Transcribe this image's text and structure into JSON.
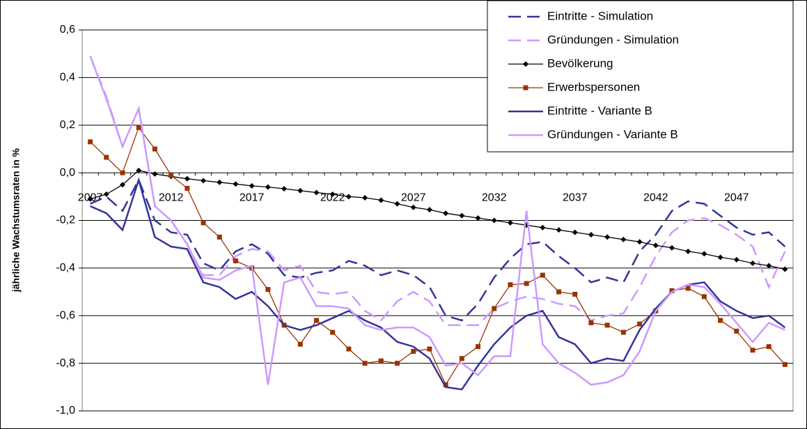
{
  "chart_data": {
    "type": "line",
    "y_axis_label": "jährliche Wachstumsraten in %",
    "categories": [
      "2007",
      null,
      null,
      null,
      null,
      "2012",
      null,
      null,
      null,
      null,
      "2017",
      null,
      null,
      null,
      null,
      "2022",
      null,
      null,
      null,
      null,
      "2027",
      null,
      null,
      null,
      null,
      "2032",
      null,
      null,
      null,
      null,
      "2037",
      null,
      null,
      null,
      null,
      "2042",
      null,
      null,
      null,
      null,
      "2047",
      null,
      null,
      null
    ],
    "ylim": [
      -1.0,
      0.6
    ],
    "yticks": [
      {
        "value": -1.0,
        "label": "-1,0"
      },
      {
        "value": -0.8,
        "label": "-0,8"
      },
      {
        "value": -0.6,
        "label": "-0,6"
      },
      {
        "value": -0.4,
        "label": "-0,4"
      },
      {
        "value": -0.2,
        "label": "-0,2"
      },
      {
        "value": 0.0,
        "label": "0,0"
      },
      {
        "value": 0.2,
        "label": "0,2"
      },
      {
        "value": 0.4,
        "label": "0,4"
      },
      {
        "value": 0.6,
        "label": "0,6"
      }
    ],
    "grid": true,
    "legend": "top-right",
    "series": [
      {
        "name": "Eintritte - Simulation",
        "color": "#333399",
        "dash": true,
        "marker": "none",
        "values": [
          -0.13,
          -0.1,
          -0.16,
          -0.03,
          -0.2,
          -0.25,
          -0.26,
          -0.38,
          -0.41,
          -0.33,
          -0.3,
          -0.34,
          -0.43,
          -0.44,
          -0.42,
          -0.41,
          -0.37,
          -0.39,
          -0.43,
          -0.41,
          -0.43,
          -0.48,
          -0.6,
          -0.62,
          -0.55,
          -0.44,
          -0.36,
          -0.3,
          -0.29,
          -0.35,
          -0.4,
          -0.46,
          -0.44,
          -0.46,
          -0.33,
          -0.26,
          -0.16,
          -0.12,
          -0.13,
          -0.18,
          -0.23,
          -0.26,
          -0.25,
          -0.31
        ]
      },
      {
        "name": "Gründungen - Simulation",
        "color": "#cc99ff",
        "dash": true,
        "marker": "none",
        "values": [
          0.49,
          0.32,
          0.11,
          0.27,
          -0.14,
          -0.2,
          -0.3,
          -0.43,
          -0.43,
          -0.35,
          -0.32,
          -0.33,
          -0.41,
          -0.39,
          -0.5,
          -0.51,
          -0.5,
          -0.58,
          -0.62,
          -0.54,
          -0.5,
          -0.54,
          -0.64,
          -0.64,
          -0.64,
          -0.57,
          -0.54,
          -0.52,
          -0.53,
          -0.55,
          -0.56,
          -0.62,
          -0.6,
          -0.59,
          -0.48,
          -0.35,
          -0.25,
          -0.2,
          -0.19,
          -0.22,
          -0.26,
          -0.31,
          -0.48,
          -0.33
        ]
      },
      {
        "name": "Bevölkerung",
        "color": "#000000",
        "dash": false,
        "marker": "diamond",
        "values": [
          -0.11,
          -0.09,
          -0.05,
          0.01,
          -0.005,
          -0.015,
          -0.025,
          -0.033,
          -0.04,
          -0.047,
          -0.055,
          -0.06,
          -0.067,
          -0.075,
          -0.083,
          -0.09,
          -0.1,
          -0.105,
          -0.115,
          -0.13,
          -0.145,
          -0.155,
          -0.17,
          -0.18,
          -0.19,
          -0.2,
          -0.21,
          -0.22,
          -0.23,
          -0.24,
          -0.25,
          -0.26,
          -0.27,
          -0.28,
          -0.29,
          -0.305,
          -0.315,
          -0.33,
          -0.34,
          -0.355,
          -0.365,
          -0.38,
          -0.39,
          -0.405
        ]
      },
      {
        "name": "Erwerbspersonen",
        "color": "#993300",
        "dash": false,
        "marker": "square",
        "values": [
          0.13,
          0.065,
          0.0,
          0.19,
          0.1,
          -0.01,
          -0.065,
          -0.21,
          -0.27,
          -0.37,
          -0.4,
          -0.49,
          -0.64,
          -0.72,
          -0.62,
          -0.67,
          -0.74,
          -0.8,
          -0.79,
          -0.8,
          -0.75,
          -0.74,
          -0.89,
          -0.78,
          -0.73,
          -0.57,
          -0.47,
          -0.465,
          -0.43,
          -0.5,
          -0.51,
          -0.63,
          -0.64,
          -0.67,
          -0.635,
          -0.58,
          -0.495,
          -0.485,
          -0.52,
          -0.62,
          -0.665,
          -0.745,
          -0.73,
          -0.805
        ]
      },
      {
        "name": "Eintritte - Variante B",
        "color": "#333399",
        "dash": false,
        "marker": "none",
        "values": [
          -0.14,
          -0.17,
          -0.24,
          -0.03,
          -0.27,
          -0.31,
          -0.32,
          -0.46,
          -0.48,
          -0.53,
          -0.5,
          -0.56,
          -0.64,
          -0.66,
          -0.64,
          -0.61,
          -0.58,
          -0.62,
          -0.65,
          -0.71,
          -0.73,
          -0.78,
          -0.9,
          -0.91,
          -0.81,
          -0.72,
          -0.65,
          -0.6,
          -0.58,
          -0.69,
          -0.72,
          -0.8,
          -0.78,
          -0.79,
          -0.66,
          -0.57,
          -0.5,
          -0.47,
          -0.46,
          -0.54,
          -0.58,
          -0.61,
          -0.6,
          -0.65
        ]
      },
      {
        "name": "Gründungen - Variante B",
        "color": "#cc99ff",
        "dash": false,
        "marker": "none",
        "values": [
          0.49,
          0.31,
          0.11,
          0.27,
          -0.14,
          -0.2,
          -0.3,
          -0.44,
          -0.45,
          -0.41,
          -0.39,
          -0.89,
          -0.46,
          -0.44,
          -0.56,
          -0.56,
          -0.57,
          -0.64,
          -0.66,
          -0.65,
          -0.65,
          -0.69,
          -0.81,
          -0.8,
          -0.85,
          -0.77,
          -0.77,
          -0.16,
          -0.72,
          -0.8,
          -0.84,
          -0.89,
          -0.88,
          -0.85,
          -0.75,
          -0.58,
          -0.5,
          -0.47,
          -0.48,
          -0.55,
          -0.63,
          -0.71,
          -0.63,
          -0.66
        ]
      }
    ]
  }
}
